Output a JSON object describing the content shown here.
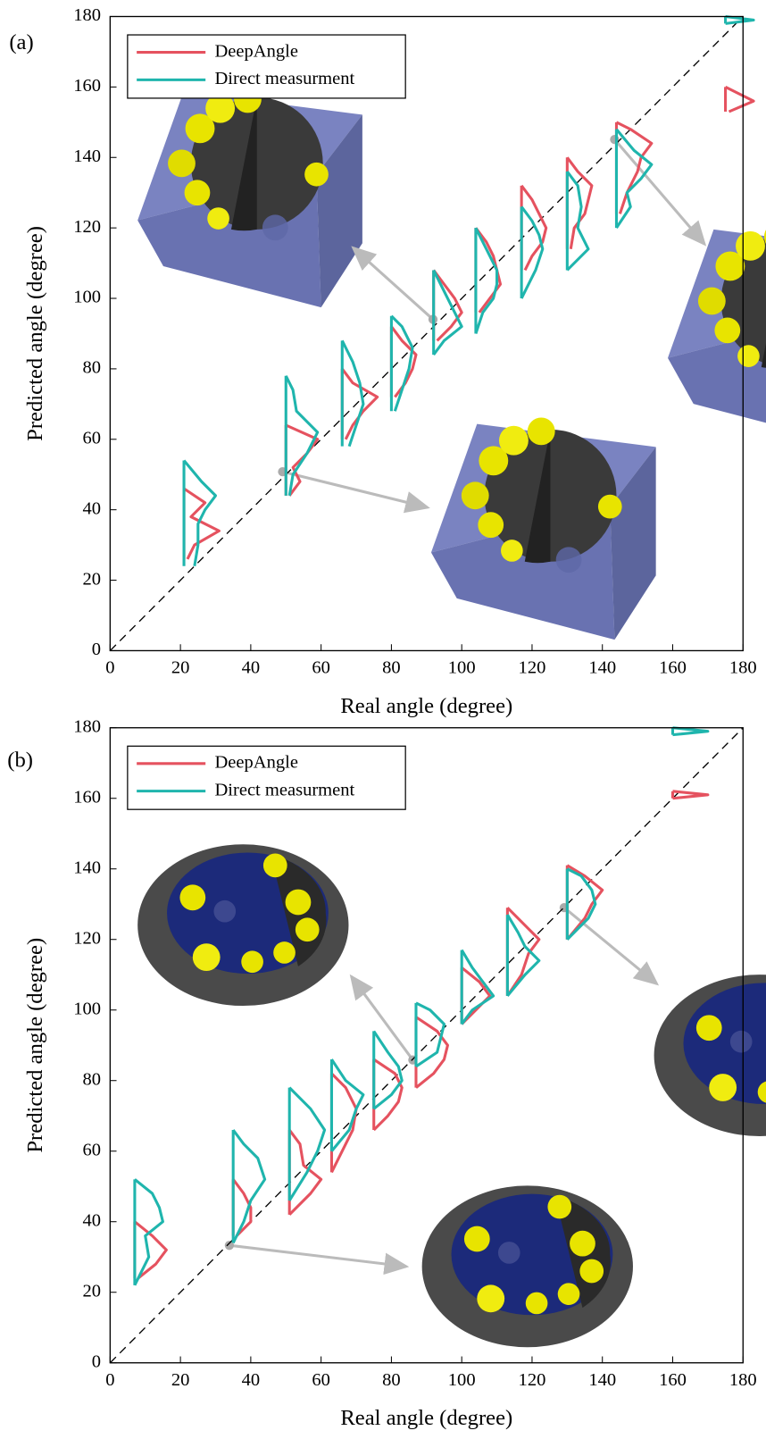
{
  "chart_data": [
    {
      "type": "histogram-profile",
      "label": "(a)",
      "xlabel": "Real angle (degree)",
      "ylabel": "Predicted angle (degree)",
      "xlim": [
        0,
        180
      ],
      "ylim": [
        0,
        180
      ],
      "xticks": [
        0,
        20,
        40,
        60,
        80,
        100,
        120,
        140,
        160,
        180
      ],
      "yticks": [
        0,
        20,
        40,
        60,
        80,
        100,
        120,
        140,
        160,
        180
      ],
      "legend": "upper left",
      "x": [
        21,
        50,
        66,
        80,
        92,
        104,
        117,
        130,
        144,
        175
      ],
      "series": [
        {
          "name": "DeepAngle",
          "color": "#e5525f",
          "profiles": [
            {
              "y": [
                26,
                30,
                34,
                38,
                42,
                46
              ],
              "width": [
                1,
                3,
                10,
                2,
                6,
                0
              ]
            },
            {
              "y": [
                44,
                48,
                52,
                56,
                60,
                64
              ],
              "width": [
                1,
                4,
                2,
                6,
                9,
                0
              ]
            },
            {
              "y": [
                60,
                64,
                68,
                72,
                76,
                80
              ],
              "width": [
                1,
                3,
                6,
                10,
                3,
                0
              ]
            },
            {
              "y": [
                72,
                76,
                80,
                84,
                88,
                92
              ],
              "width": [
                1,
                4,
                6,
                7,
                3,
                0
              ]
            },
            {
              "y": [
                88,
                92,
                96,
                100,
                104,
                108
              ],
              "width": [
                1,
                5,
                8,
                6,
                3,
                0
              ]
            },
            {
              "y": [
                96,
                100,
                104,
                108,
                112,
                116,
                120
              ],
              "width": [
                1,
                4,
                7,
                6,
                5,
                3,
                0
              ]
            },
            {
              "y": [
                108,
                112,
                116,
                120,
                124,
                128,
                132
              ],
              "width": [
                1,
                3,
                6,
                7,
                5,
                3,
                0
              ]
            },
            {
              "y": [
                114,
                120,
                124,
                128,
                132,
                136,
                140
              ],
              "width": [
                1,
                2,
                5,
                6,
                7,
                3,
                0
              ]
            },
            {
              "y": [
                124,
                130,
                136,
                140,
                144,
                148,
                150
              ],
              "width": [
                1,
                3,
                6,
                7,
                10,
                4,
                0
              ]
            },
            {
              "y": [
                153,
                156,
                160
              ],
              "width": [
                1,
                8,
                0
              ]
            }
          ]
        },
        {
          "name": "Direct measurment",
          "color": "#1fb5ad",
          "profiles": [
            {
              "y": [
                24,
                30,
                36,
                40,
                44,
                48,
                54
              ],
              "width": [
                3,
                4,
                4,
                6,
                9,
                5,
                0
              ]
            },
            {
              "y": [
                44,
                50,
                56,
                62,
                68,
                74,
                78
              ],
              "width": [
                1,
                2,
                6,
                9,
                3,
                2,
                0
              ]
            },
            {
              "y": [
                58,
                64,
                70,
                76,
                82,
                88
              ],
              "width": [
                2,
                4,
                6,
                5,
                3,
                0
              ]
            },
            {
              "y": [
                68,
                74,
                80,
                86,
                92,
                95
              ],
              "width": [
                1,
                3,
                5,
                6,
                3,
                0
              ]
            },
            {
              "y": [
                84,
                88,
                92,
                96,
                100,
                104,
                108
              ],
              "width": [
                0,
                3,
                8,
                6,
                4,
                2,
                0
              ]
            },
            {
              "y": [
                90,
                96,
                100,
                104,
                108,
                114,
                120
              ],
              "width": [
                0,
                2,
                5,
                6,
                6,
                3,
                0
              ]
            },
            {
              "y": [
                100,
                108,
                114,
                118,
                122,
                126
              ],
              "width": [
                0,
                4,
                6,
                5,
                3,
                0
              ]
            },
            {
              "y": [
                108,
                114,
                120,
                126,
                132,
                136
              ],
              "width": [
                0,
                6,
                3,
                4,
                3,
                0
              ]
            },
            {
              "y": [
                120,
                126,
                130,
                134,
                138,
                142,
                148
              ],
              "width": [
                0,
                4,
                3,
                7,
                10,
                5,
                0
              ]
            },
            {
              "y": [
                178,
                179,
                180
              ],
              "width": [
                0,
                8,
                0
              ]
            }
          ]
        }
      ]
    },
    {
      "type": "histogram-profile",
      "label": "(b)",
      "xlabel": "Real angle (degree)",
      "ylabel": "Predicted angle (degree)",
      "xlim": [
        0,
        180
      ],
      "ylim": [
        0,
        180
      ],
      "xticks": [
        0,
        20,
        40,
        60,
        80,
        100,
        120,
        140,
        160,
        180
      ],
      "yticks": [
        0,
        20,
        40,
        60,
        80,
        100,
        120,
        140,
        160,
        180
      ],
      "legend": "upper left",
      "x": [
        7,
        35,
        51,
        63,
        75,
        87,
        100,
        113,
        130,
        160
      ],
      "series": [
        {
          "name": "DeepAngle",
          "color": "#e5525f",
          "profiles": [
            {
              "y": [
                24,
                28,
                32,
                36,
                40
              ],
              "width": [
                1,
                6,
                9,
                5,
                0
              ]
            },
            {
              "y": [
                36,
                40,
                44,
                48,
                52
              ],
              "width": [
                1,
                5,
                5,
                3,
                0
              ]
            },
            {
              "y": [
                42,
                48,
                52,
                56,
                62,
                66
              ],
              "width": [
                0,
                6,
                9,
                4,
                3,
                0
              ]
            },
            {
              "y": [
                54,
                60,
                66,
                72,
                78,
                82
              ],
              "width": [
                0,
                3,
                6,
                7,
                4,
                0
              ]
            },
            {
              "y": [
                66,
                70,
                74,
                78,
                82,
                86
              ],
              "width": [
                0,
                4,
                7,
                8,
                6,
                0
              ]
            },
            {
              "y": [
                78,
                82,
                86,
                90,
                94,
                98
              ],
              "width": [
                0,
                5,
                8,
                9,
                6,
                0
              ]
            },
            {
              "y": [
                96,
                100,
                104,
                108,
                112
              ],
              "width": [
                0,
                4,
                8,
                5,
                0
              ]
            },
            {
              "y": [
                104,
                110,
                116,
                120,
                124,
                129
              ],
              "width": [
                0,
                4,
                6,
                9,
                5,
                0
              ]
            },
            {
              "y": [
                120,
                126,
                130,
                134,
                138,
                141
              ],
              "width": [
                0,
                5,
                7,
                10,
                5,
                0
              ]
            },
            {
              "y": [
                160,
                161,
                162
              ],
              "width": [
                0,
                10,
                0
              ]
            }
          ]
        },
        {
          "name": "Direct measurment",
          "color": "#1fb5ad",
          "profiles": [
            {
              "y": [
                22,
                30,
                36,
                40,
                44,
                48,
                52
              ],
              "width": [
                0,
                4,
                3,
                8,
                7,
                5,
                0
              ]
            },
            {
              "y": [
                34,
                40,
                46,
                52,
                58,
                62,
                66
              ],
              "width": [
                0,
                3,
                5,
                9,
                7,
                3,
                0
              ]
            },
            {
              "y": [
                46,
                54,
                60,
                66,
                72,
                78
              ],
              "width": [
                0,
                5,
                8,
                10,
                6,
                0
              ]
            },
            {
              "y": [
                60,
                66,
                72,
                76,
                80,
                86
              ],
              "width": [
                0,
                5,
                7,
                9,
                4,
                0
              ]
            },
            {
              "y": [
                72,
                76,
                80,
                84,
                88,
                94
              ],
              "width": [
                0,
                5,
                8,
                7,
                4,
                0
              ]
            },
            {
              "y": [
                84,
                88,
                92,
                96,
                100,
                102
              ],
              "width": [
                0,
                6,
                7,
                8,
                4,
                0
              ]
            },
            {
              "y": [
                96,
                100,
                104,
                108,
                112,
                117
              ],
              "width": [
                0,
                3,
                9,
                6,
                3,
                0
              ]
            },
            {
              "y": [
                104,
                110,
                114,
                118,
                122,
                127
              ],
              "width": [
                0,
                5,
                9,
                5,
                3,
                0
              ]
            },
            {
              "y": [
                120,
                126,
                130,
                134,
                138,
                140
              ],
              "width": [
                0,
                6,
                8,
                7,
                4,
                0
              ]
            },
            {
              "y": [
                178,
                179,
                180
              ],
              "width": [
                0,
                10,
                0
              ]
            }
          ]
        }
      ]
    }
  ]
}
